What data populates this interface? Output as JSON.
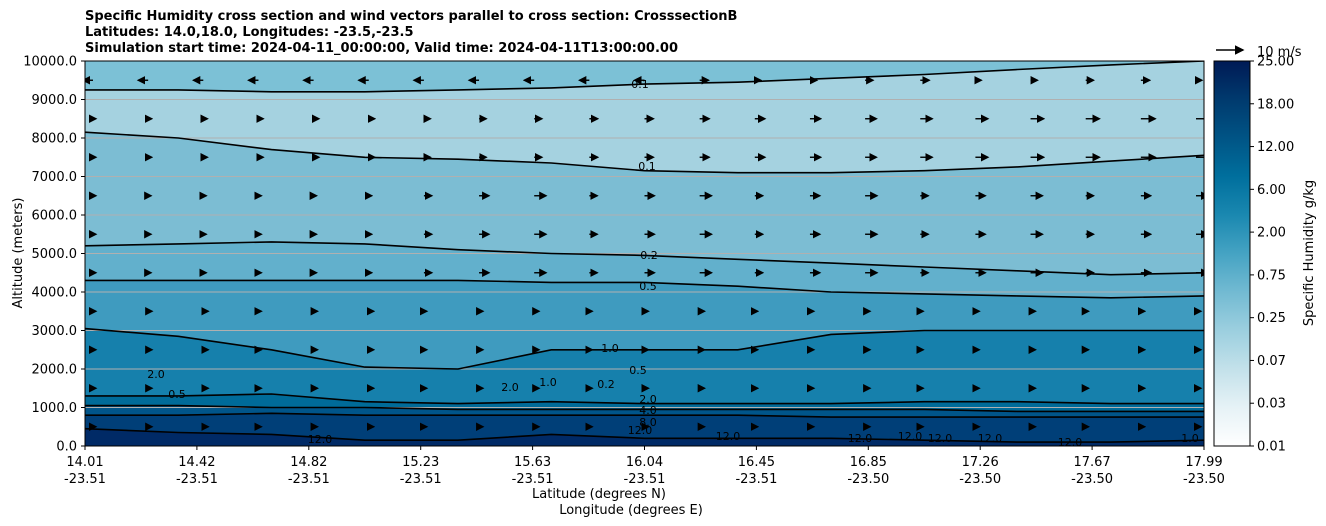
{
  "chart_data": {
    "type": "contour",
    "title_lines": [
      "Specific Humidity cross section and wind vectors parallel to cross section: CrosssectionB",
      "Latitudes: 14.0,18.0, Longitudes: -23.5,-23.5",
      "Simulation start time: 2024-04-11_00:00:00, Valid time: 2024-04-11T13:00:00.00"
    ],
    "ylabel": "Altitude (meters)",
    "xlabel_lines": [
      "Latitude (degrees N)",
      "Longitude (degrees E)"
    ],
    "ylim": [
      0,
      10000
    ],
    "yticks": [
      "0.0",
      "1000.0",
      "2000.0",
      "3000.0",
      "4000.0",
      "5000.0",
      "6000.0",
      "7000.0",
      "8000.0",
      "9000.0",
      "10000.0"
    ],
    "xticks": [
      {
        "lat": "14.01",
        "lon": "-23.51"
      },
      {
        "lat": "14.42",
        "lon": "-23.51"
      },
      {
        "lat": "14.82",
        "lon": "-23.51"
      },
      {
        "lat": "15.23",
        "lon": "-23.51"
      },
      {
        "lat": "15.63",
        "lon": "-23.51"
      },
      {
        "lat": "16.04",
        "lon": "-23.51"
      },
      {
        "lat": "16.45",
        "lon": "-23.51"
      },
      {
        "lat": "16.85",
        "lon": "-23.50"
      },
      {
        "lat": "17.26",
        "lon": "-23.50"
      },
      {
        "lat": "17.67",
        "lon": "-23.50"
      },
      {
        "lat": "17.99",
        "lon": "-23.50"
      }
    ],
    "grid": "horizontal",
    "colorbar": {
      "label": "Specific Humidity g/kg",
      "ticks": [
        "25.00",
        "18.00",
        "12.00",
        "6.00",
        "2.00",
        "0.75",
        "0.25",
        "0.07",
        "0.03",
        "0.01"
      ]
    },
    "quiver_key": "10 m/s",
    "contour_levels": [
      {
        "level": "0.1",
        "altitude_m": [
          9250,
          9250,
          9200,
          9200,
          9250,
          9300,
          9400,
          9450,
          9550,
          9650,
          9780,
          9900,
          10000
        ]
      },
      {
        "level": "0.1",
        "altitude_m": [
          8150,
          8000,
          7700,
          7500,
          7450,
          7350,
          7150,
          7100,
          7100,
          7150,
          7250,
          7400,
          7550
        ]
      },
      {
        "level": "0.2",
        "altitude_m": [
          5200,
          5250,
          5300,
          5250,
          5100,
          5000,
          4950,
          4850,
          4750,
          4650,
          4550,
          4450,
          4500
        ]
      },
      {
        "level": "0.5",
        "altitude_m": [
          4300,
          4300,
          4300,
          4300,
          4300,
          4250,
          4250,
          4150,
          4000,
          3950,
          3900,
          3850,
          3900
        ]
      },
      {
        "level": "1.0",
        "altitude_m": [
          3050,
          2850,
          2500,
          2050,
          2000,
          2500,
          2500,
          2500,
          2900,
          3000,
          3000,
          3000,
          3000
        ]
      },
      {
        "level": "2.0",
        "altitude_m": [
          1300,
          1300,
          1350,
          1150,
          1100,
          1150,
          1100,
          1100,
          1100,
          1150,
          1150,
          1100,
          1100
        ]
      },
      {
        "level": "4.0",
        "altitude_m": [
          1050,
          1050,
          1000,
          1000,
          950,
          950,
          950,
          950,
          950,
          950,
          900,
          900,
          900
        ]
      },
      {
        "level": "8.0",
        "altitude_m": [
          800,
          800,
          850,
          800,
          800,
          800,
          800,
          800,
          750,
          750,
          750,
          750,
          750
        ]
      },
      {
        "level": "12.0",
        "altitude_m": [
          450,
          350,
          300,
          150,
          150,
          300,
          200,
          200,
          200,
          150,
          100,
          100,
          150
        ]
      }
    ],
    "contour_annotations": [
      "0.1",
      "0.1",
      "0.2",
      "0.5",
      "1.0",
      "0.5",
      "0.2",
      "2.0",
      "2.0",
      "4.0",
      "8.0",
      "12.0",
      "12.0",
      "12.0",
      "12.0",
      "12.0",
      "12.0",
      "12.0",
      "12.0",
      "1.0",
      "0.5",
      "1.0",
      "2.0"
    ]
  }
}
